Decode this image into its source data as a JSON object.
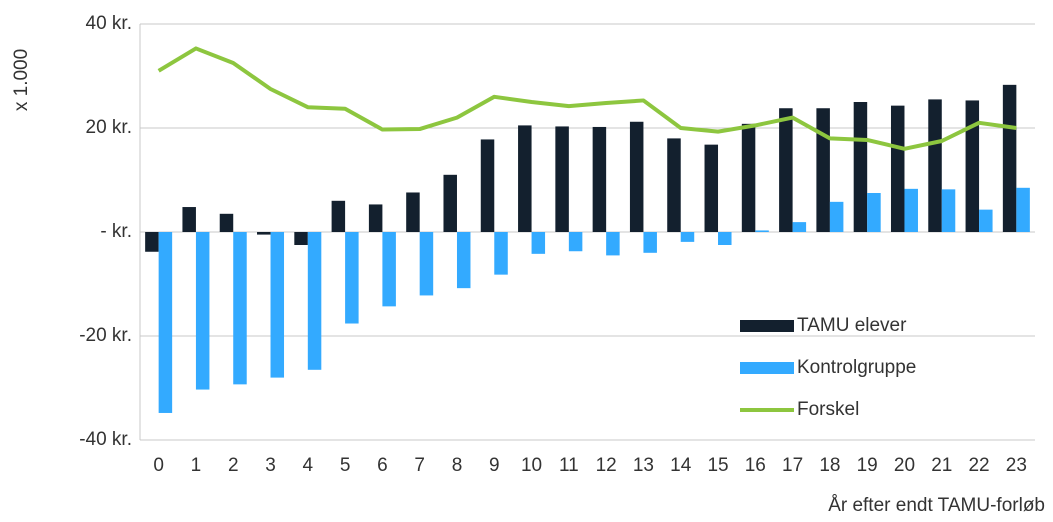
{
  "chart_data": {
    "type": "bar_line",
    "y_axis_label": "x 1.000",
    "x_axis_label": "År efter endt TAMU-forløb",
    "categories": [
      "0",
      "1",
      "2",
      "3",
      "4",
      "5",
      "6",
      "7",
      "8",
      "9",
      "10",
      "11",
      "12",
      "13",
      "14",
      "15",
      "16",
      "17",
      "18",
      "19",
      "20",
      "21",
      "22",
      "23"
    ],
    "series": [
      {
        "name": "TAMU elever",
        "type": "bar",
        "color": "#13202e",
        "values": [
          -3.8,
          4.8,
          3.5,
          -0.5,
          -2.5,
          6,
          5.3,
          7.6,
          11,
          17.8,
          20.5,
          20.3,
          20.2,
          21.2,
          18,
          16.8,
          20.8,
          23.8,
          23.8,
          25,
          24.3,
          25.5,
          25.3,
          28.3
        ]
      },
      {
        "name": "Kontrolgruppe",
        "type": "bar",
        "color": "#33aaff",
        "values": [
          -34.8,
          -30.3,
          -29.3,
          -28,
          -26.5,
          -17.6,
          -14.3,
          -12.2,
          -10.8,
          -8.2,
          -4.2,
          -3.7,
          -4.5,
          -4,
          -1.9,
          -2.5,
          0.3,
          1.9,
          5.8,
          7.5,
          8.3,
          8.2,
          4.3,
          8.5
        ]
      },
      {
        "name": "Forskel",
        "type": "line",
        "color": "#8dc63f",
        "values": [
          31,
          35.3,
          32.5,
          27.5,
          24,
          23.7,
          19.7,
          19.8,
          22,
          26,
          25,
          24.2,
          24.8,
          25.3,
          20,
          19.3,
          20.5,
          22,
          18,
          17.7,
          16,
          17.5,
          21,
          20
        ]
      }
    ],
    "ylim": [
      -40,
      40
    ],
    "yticks": [
      {
        "value": -40,
        "label": "-40 kr."
      },
      {
        "value": -20,
        "label": "-20 kr."
      },
      {
        "value": 0,
        "label": "- kr."
      },
      {
        "value": 20,
        "label": "20 kr."
      },
      {
        "value": 40,
        "label": "40 kr."
      }
    ],
    "grid": true,
    "legend": "lower right"
  }
}
